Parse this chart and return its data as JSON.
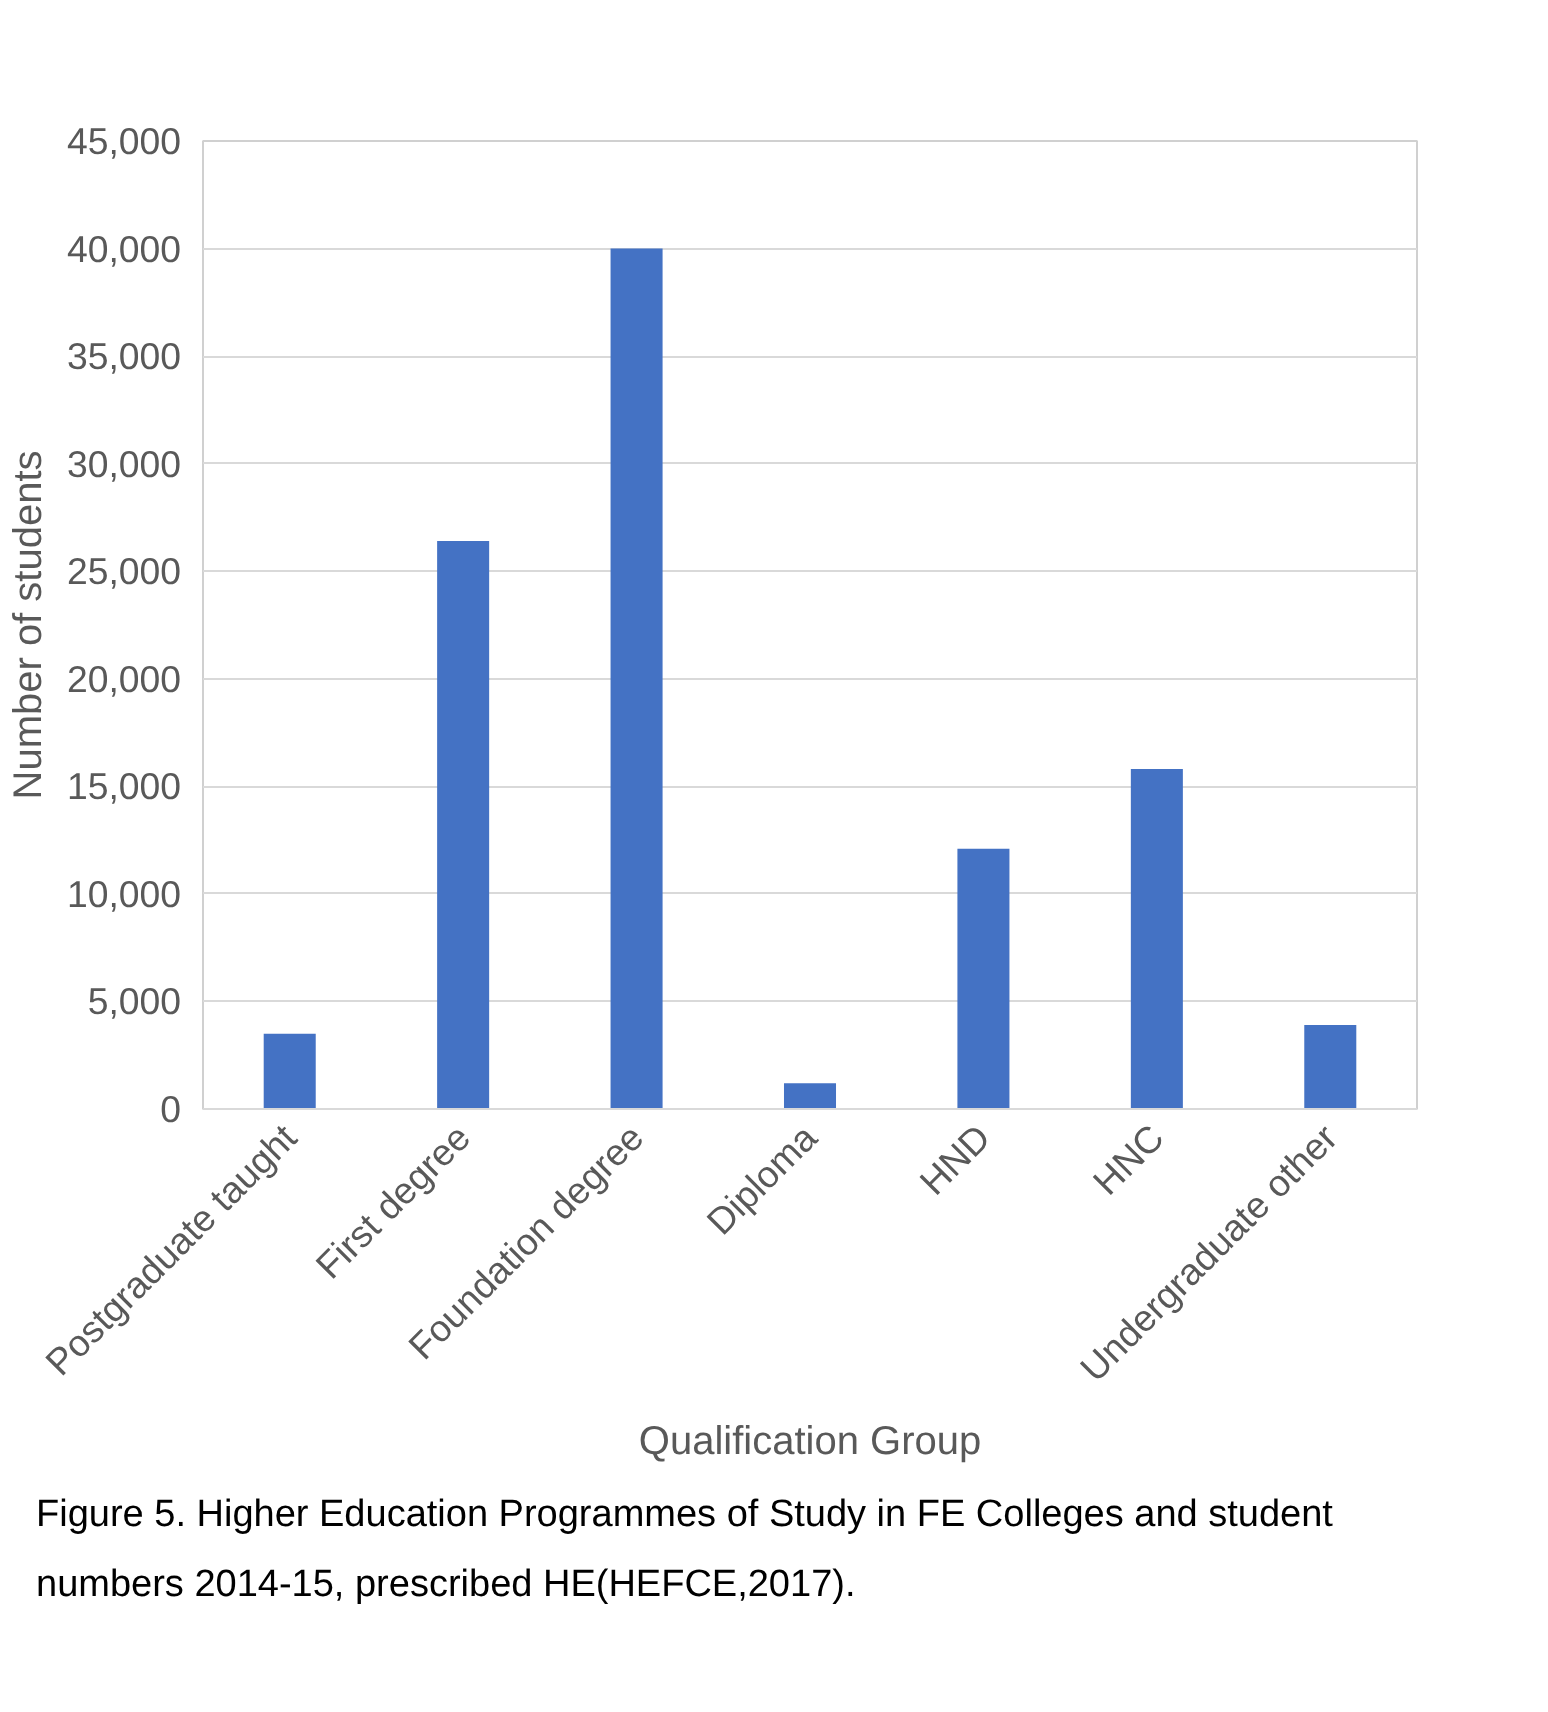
{
  "chart_data": {
    "type": "bar",
    "xlabel": "Qualification Group",
    "ylabel": "Number of students",
    "categories": [
      "Postgraduate taught",
      "First degree",
      "Foundation degree",
      "Diploma",
      "HND",
      "HNC",
      "Undergraduate other"
    ],
    "values": [
      3500,
      26400,
      40000,
      1200,
      12100,
      15800,
      3900
    ],
    "color": "#4472c4",
    "ylim": [
      0,
      45000
    ],
    "yticks": [
      0,
      {
        "value": 5000,
        "label": "5,000"
      },
      {
        "value": 10000,
        "label": "10,000"
      },
      {
        "value": 15000,
        "label": "15,000"
      },
      {
        "value": 20000,
        "label": "20,000"
      },
      {
        "value": 25000,
        "label": "25,000"
      },
      {
        "value": 30000,
        "label": "30,000"
      },
      {
        "value": 35000,
        "label": "35,000"
      },
      {
        "value": 40000,
        "label": "40,000"
      },
      {
        "value": 45000,
        "label": "45,000"
      }
    ],
    "grid": "y",
    "annotations": [
      "Figure 5. Higher Education Programmes of Study in FE Colleges and student numbers 2014-15, prescribed HE(HEFCE,2017)."
    ]
  }
}
